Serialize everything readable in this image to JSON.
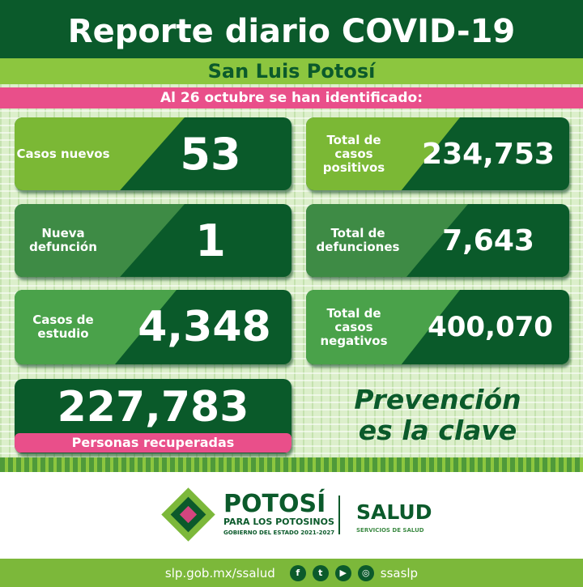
{
  "header": {
    "title": "Reporte diario COVID-19",
    "region": "San Luis Potosí",
    "date_line": "Al 26 octubre se han identificado:"
  },
  "cards": [
    {
      "label": "Casos nuevos",
      "value": "53"
    },
    {
      "label": "Total de casos positivos",
      "value": "234,753"
    },
    {
      "label": "Nueva defunción",
      "value": "1"
    },
    {
      "label": "Total de defunciones",
      "value": "7,643"
    },
    {
      "label": "Casos de estudio",
      "value": "4,348"
    },
    {
      "label": "Total de casos negativos",
      "value": "400,070"
    }
  ],
  "recovered": {
    "value": "227,783",
    "label": "Personas recuperadas"
  },
  "slogan": {
    "line1": "Prevención",
    "line2": "es la clave"
  },
  "logos": {
    "potosi": "POTOSÍ",
    "potosi_sub": "PARA LOS POTOSINOS",
    "potosi_gov": "GOBIERNO DEL ESTADO 2021-2027",
    "salud": "SALUD",
    "salud_sub": "SERVICIOS DE SALUD"
  },
  "footer": {
    "url": "slp.gob.mx/ssalud",
    "handle": "ssaslp",
    "icons": [
      "facebook-icon",
      "twitter-icon",
      "youtube-icon",
      "instagram-icon"
    ]
  },
  "colors": {
    "dark_green": "#0b5a2b",
    "light_green": "#8cc63f",
    "pink": "#e94f8a"
  }
}
